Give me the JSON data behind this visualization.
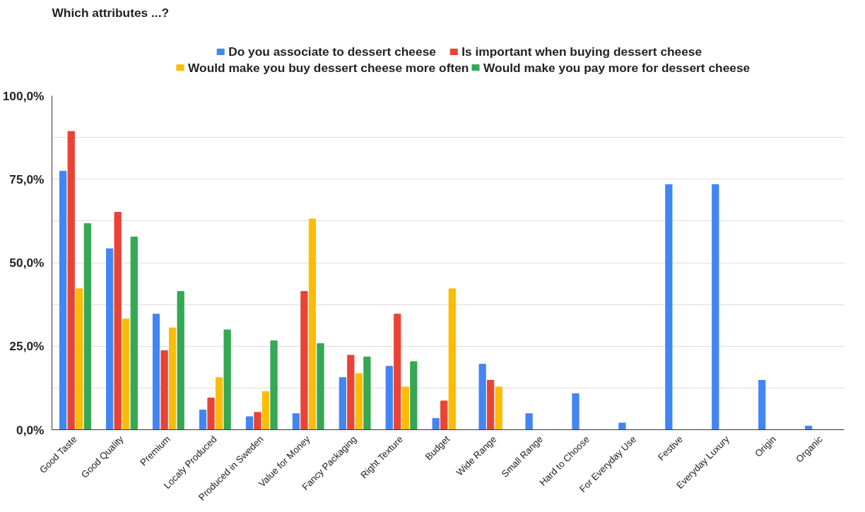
{
  "chart_data": {
    "type": "bar",
    "title": "Which attributes ...?",
    "categories": [
      "Good Taste",
      "Good Quality",
      "Premium",
      "Localy Produced",
      "Produced in Sweden",
      "Value for Money",
      "Fancy Packaging",
      "Right Texture",
      "Budget",
      "Wide Range",
      "Small Range",
      "Hard to Choose",
      "For Everyday Use",
      "Festive",
      "Everyday Luxury",
      "Origin",
      "Organic"
    ],
    "series": [
      {
        "name": "Do you associate to dessert cheese",
        "color": "#4285f4",
        "values": [
          77.4,
          54.2,
          34.6,
          5.9,
          3.9,
          4.8,
          15.6,
          19.0,
          3.4,
          19.6,
          4.8,
          10.8,
          2.0,
          73.4,
          73.4,
          14.8,
          1.1
        ]
      },
      {
        "name": "Is important when buying dessert cheese",
        "color": "#ea4335",
        "values": [
          89.3,
          65.1,
          23.7,
          9.5,
          5.2,
          41.4,
          22.3,
          34.6,
          8.6,
          14.8,
          null,
          null,
          null,
          null,
          null,
          null,
          null
        ]
      },
      {
        "name": "Would make you buy dessert cheese more often",
        "color": "#fbbc04",
        "values": [
          42.2,
          33.2,
          30.5,
          15.6,
          11.4,
          63.1,
          16.8,
          12.8,
          42.2,
          12.8,
          null,
          null,
          null,
          null,
          null,
          null,
          null
        ]
      },
      {
        "name": "Would make you pay more for dessert cheese",
        "color": "#34a853",
        "values": [
          61.7,
          57.7,
          41.4,
          29.9,
          26.6,
          25.8,
          21.8,
          20.4,
          null,
          null,
          null,
          null,
          null,
          null,
          null,
          null,
          null
        ]
      }
    ],
    "ylim": [
      0,
      100
    ],
    "yticks": [
      {
        "value": 0,
        "label": "0,0%"
      },
      {
        "value": 12.5,
        "label": null
      },
      {
        "value": 25,
        "label": "25,0%"
      },
      {
        "value": 37.5,
        "label": null
      },
      {
        "value": 50,
        "label": "50,0%"
      },
      {
        "value": 62.5,
        "label": null
      },
      {
        "value": 75,
        "label": "75,0%"
      },
      {
        "value": 87.5,
        "label": null
      },
      {
        "value": 100,
        "label": "100,0%"
      }
    ],
    "grid": "y",
    "legend": "top"
  }
}
